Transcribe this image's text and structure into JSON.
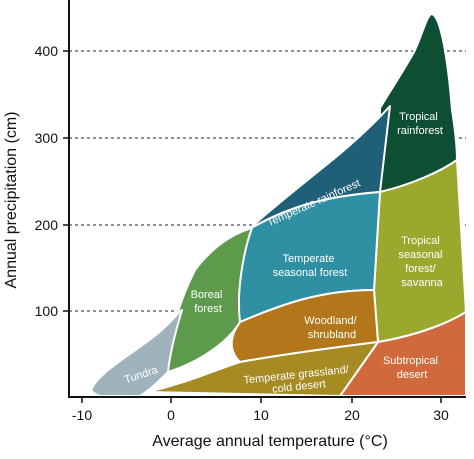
{
  "chart": {
    "xlabel": "Average annual temperature (°C)",
    "ylabel": "Annual precipitation (cm)",
    "xticks": [
      "-10",
      "0",
      "10",
      "20",
      "30"
    ],
    "yticks": [
      "100",
      "200",
      "300",
      "400"
    ]
  },
  "biomes": {
    "tundra": {
      "lines": [
        "Tundra"
      ],
      "color": "#9fb3bd"
    },
    "boreal": {
      "lines": [
        "Boreal",
        "forest"
      ],
      "color": "#5e9a4c"
    },
    "temperate_rainforest": {
      "lines": [
        "Temperate rainforest"
      ],
      "color": "#1f5f78"
    },
    "temperate_seasonal": {
      "lines": [
        "Temperate",
        "seasonal forest"
      ],
      "color": "#2f8fa3"
    },
    "woodland": {
      "lines": [
        "Woodland/",
        "shrubland"
      ],
      "color": "#b3761b"
    },
    "grassland": {
      "lines": [
        "Temperate grassland/",
        "cold desert"
      ],
      "color": "#a68a22"
    },
    "tropical_rainforest": {
      "lines": [
        "Tropical",
        "rainforest"
      ],
      "color": "#0e4f33"
    },
    "tropical_seasonal": {
      "lines": [
        "Tropical",
        "seasonal",
        "forest/",
        "savanna"
      ],
      "color": "#9aa82e"
    },
    "subtropical_desert": {
      "lines": [
        "Subtropical",
        "desert"
      ],
      "color": "#d06a3c"
    }
  }
}
